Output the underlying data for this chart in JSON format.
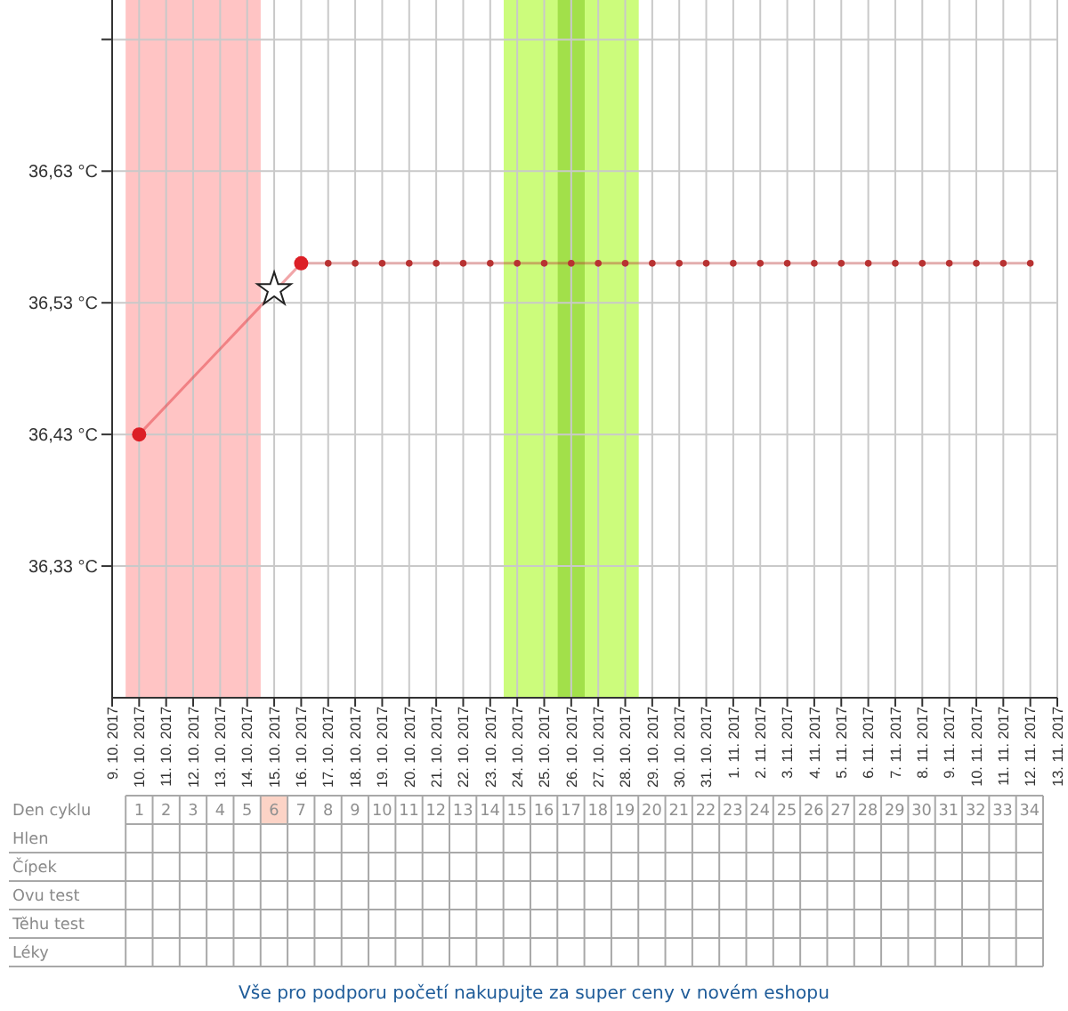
{
  "chart_data": [
    {
      "type": "line",
      "xlim": [
        "2017-10-09",
        "2017-11-13"
      ],
      "ylim": [
        36.23,
        36.76
      ],
      "xticks": [
        {
          "value": "2017-10-09",
          "label": "9. 10. 2017"
        },
        {
          "value": "2017-10-10",
          "label": "10. 10. 2017"
        },
        {
          "value": "2017-10-11",
          "label": "11. 10. 2017"
        },
        {
          "value": "2017-10-12",
          "label": "12. 10. 2017"
        },
        {
          "value": "2017-10-13",
          "label": "13. 10. 2017"
        },
        {
          "value": "2017-10-14",
          "label": "14. 10. 2017"
        },
        {
          "value": "2017-10-15",
          "label": "15. 10. 2017"
        },
        {
          "value": "2017-10-16",
          "label": "16. 10. 2017"
        },
        {
          "value": "2017-10-17",
          "label": "17. 10. 2017"
        },
        {
          "value": "2017-10-18",
          "label": "18. 10. 2017"
        },
        {
          "value": "2017-10-19",
          "label": "19. 10. 2017"
        },
        {
          "value": "2017-10-20",
          "label": "20. 10. 2017"
        },
        {
          "value": "2017-10-21",
          "label": "21. 10. 2017"
        },
        {
          "value": "2017-10-22",
          "label": "22. 10. 2017"
        },
        {
          "value": "2017-10-23",
          "label": "23. 10. 2017"
        },
        {
          "value": "2017-10-24",
          "label": "24. 10. 2017"
        },
        {
          "value": "2017-10-25",
          "label": "25. 10. 2017"
        },
        {
          "value": "2017-10-26",
          "label": "26. 10. 2017"
        },
        {
          "value": "2017-10-27",
          "label": "27. 10. 2017"
        },
        {
          "value": "2017-10-28",
          "label": "28. 10. 2017"
        },
        {
          "value": "2017-10-29",
          "label": "29. 10. 2017"
        },
        {
          "value": "2017-10-30",
          "label": "30. 10. 2017"
        },
        {
          "value": "2017-10-31",
          "label": "31. 10. 2017"
        },
        {
          "value": "2017-11-01",
          "label": "1. 11. 2017"
        },
        {
          "value": "2017-11-02",
          "label": "2. 11. 2017"
        },
        {
          "value": "2017-11-03",
          "label": "3. 11. 2017"
        },
        {
          "value": "2017-11-04",
          "label": "4. 11. 2017"
        },
        {
          "value": "2017-11-05",
          "label": "5. 11. 2017"
        },
        {
          "value": "2017-11-06",
          "label": "6. 11. 2017"
        },
        {
          "value": "2017-11-07",
          "label": "7. 11. 2017"
        },
        {
          "value": "2017-11-08",
          "label": "8. 11. 2017"
        },
        {
          "value": "2017-11-09",
          "label": "9. 11. 2017"
        },
        {
          "value": "2017-11-10",
          "label": "10. 11. 2017"
        },
        {
          "value": "2017-11-11",
          "label": "11. 11. 2017"
        },
        {
          "value": "2017-11-12",
          "label": "12. 11. 2017"
        },
        {
          "value": "2017-11-13",
          "label": "13. 11. 2017"
        }
      ],
      "yticks": [
        {
          "value": 36.33,
          "label": "36,33 °C"
        },
        {
          "value": 36.43,
          "label": "36,43 °C"
        },
        {
          "value": 36.53,
          "label": "36,53 °C"
        },
        {
          "value": 36.63,
          "label": "36,63 °C"
        },
        {
          "value": 36.73,
          "label": null
        }
      ],
      "x2label": "Den cyklu",
      "x2lim": [
        0.5,
        34.5
      ],
      "x2ticks": [
        1,
        2,
        3,
        4,
        5,
        6,
        7,
        8,
        9,
        10,
        11,
        12,
        13,
        14,
        15,
        16,
        17,
        18,
        19,
        20,
        21,
        22,
        23,
        24,
        25,
        26,
        27,
        28,
        29,
        30,
        31,
        32,
        33,
        34
      ],
      "grid": true,
      "bands": [
        {
          "axis": "x",
          "from": "2017-10-09T12:00",
          "to": "2017-10-14T12:00",
          "color": "#ffc4c4"
        },
        {
          "axis": "x",
          "from": "2017-10-23T12:00",
          "to": "2017-10-28T12:00",
          "color": "#ccfc7c"
        },
        {
          "axis": "x",
          "from": "2017-10-25T12:00",
          "to": "2017-10-26T12:00",
          "color": "#a2e04a"
        }
      ],
      "series": [
        {
          "type": "line",
          "color": "#dc1f26",
          "marker": "circle",
          "x": [
            "2017-10-10",
            "2017-10-16"
          ],
          "values": [
            36.43,
            36.56
          ]
        },
        {
          "type": "line",
          "color": "#b83232",
          "marker": "circle",
          "x": [
            "2017-10-16",
            "2017-10-17",
            "2017-10-18",
            "2017-10-19",
            "2017-10-20",
            "2017-10-21",
            "2017-10-22",
            "2017-10-23",
            "2017-10-24",
            "2017-10-25",
            "2017-10-26",
            "2017-10-27",
            "2017-10-28",
            "2017-10-29",
            "2017-10-30",
            "2017-10-31",
            "2017-11-01",
            "2017-11-02",
            "2017-11-03",
            "2017-11-04",
            "2017-11-05",
            "2017-11-06",
            "2017-11-07",
            "2017-11-08",
            "2017-11-09",
            "2017-11-10",
            "2017-11-11",
            "2017-11-12"
          ],
          "values": [
            36.56,
            36.56,
            36.56,
            36.56,
            36.56,
            36.56,
            36.56,
            36.56,
            36.56,
            36.56,
            36.56,
            36.56,
            36.56,
            36.56,
            36.56,
            36.56,
            36.56,
            36.56,
            36.56,
            36.56,
            36.56,
            36.56,
            36.56,
            36.56,
            36.56,
            36.56,
            36.56,
            36.56
          ]
        },
        {
          "type": "scatter",
          "color": "#ffffff",
          "marker": "star",
          "x": [
            "2017-10-15"
          ],
          "values": [
            36.54
          ]
        }
      ]
    },
    {
      "type": "other",
      "y_categories": [
        "Hlen",
        "Čípek",
        "Ovu test",
        "Těhu test",
        "Léky"
      ],
      "annotations": [
        "Vše pro podporu početí nakupujte za super ceny v novém eshopu"
      ]
    }
  ]
}
